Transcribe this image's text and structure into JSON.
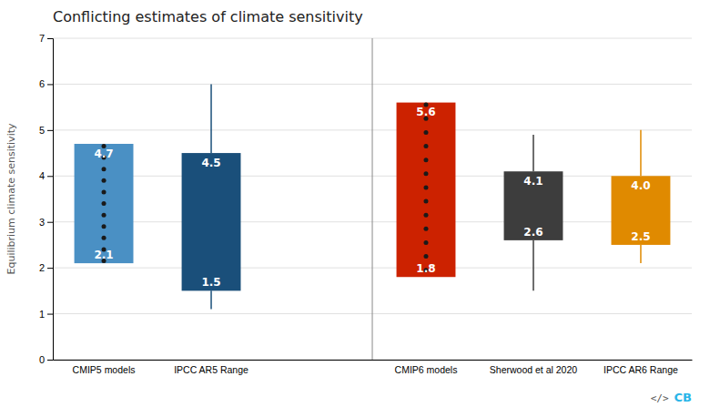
{
  "chart_data": {
    "type": "bar",
    "title": "Conflicting estimates of climate sensitivity",
    "ylabel": "Equilibrium climate sensitivity",
    "categories": [
      "CMIP5 models",
      "IPCC AR5 Range",
      null,
      "CMIP6 models",
      "Sherwood et al 2020",
      "IPCC AR6 Range"
    ],
    "low": [
      2.1,
      1.5,
      null,
      1.8,
      2.6,
      2.5
    ],
    "high": [
      4.7,
      4.5,
      null,
      5.6,
      4.1,
      4.0
    ],
    "low_labels": [
      "2.1",
      "1.5",
      null,
      "1.8",
      "2.6",
      "2.5"
    ],
    "high_labels": [
      "4.7",
      "4.5",
      null,
      "5.6",
      "4.1",
      "4.0"
    ],
    "whisker_low": [
      null,
      1.1,
      null,
      null,
      1.5,
      2.1
    ],
    "whisker_high": [
      null,
      6.0,
      null,
      null,
      4.9,
      5.0
    ],
    "dots": [
      [
        4.65,
        4.4,
        4.15,
        3.9,
        3.65,
        3.4,
        3.15,
        2.9,
        2.65,
        2.4,
        2.15
      ],
      [],
      null,
      [
        5.55,
        5.25,
        4.95,
        4.65,
        4.35,
        4.05,
        3.75,
        3.45,
        3.15,
        2.85,
        2.55,
        2.25,
        1.95
      ],
      [],
      []
    ],
    "dot_color": "#1a1a1a",
    "colors": [
      "#4a90c4",
      "#1a4f7a",
      null,
      "#cc2200",
      "#3d3d3d",
      "#e08a00"
    ],
    "ylim": [
      0,
      7
    ],
    "yticks": [
      0,
      1,
      2,
      3,
      4,
      5,
      6,
      7
    ],
    "grid": true,
    "data_labels": true,
    "annotations": [
      "</>",
      "CB"
    ]
  }
}
